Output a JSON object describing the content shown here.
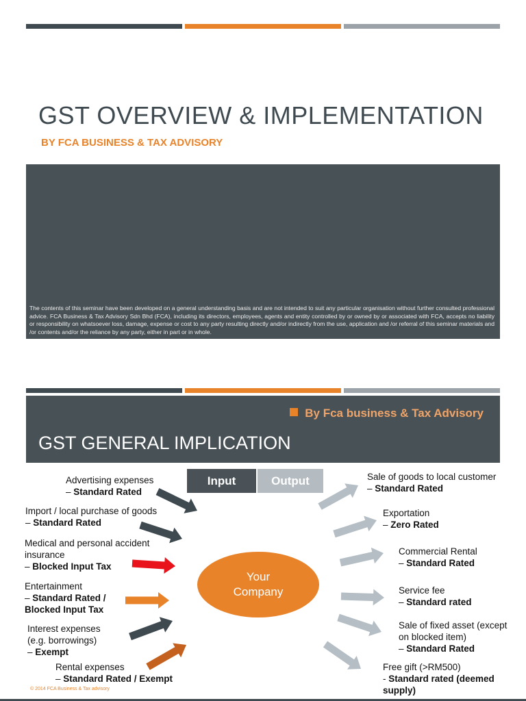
{
  "slide1": {
    "title": "GST OVERVIEW & IMPLEMENTATION",
    "subtitle": "BY FCA BUSINESS & TAX ADVISORY",
    "disclaimer": "The contents of this seminar have been developed on a general understanding basis and are not intended to suit any particular organisation without further consulted professional advice. FCA Business & Tax Advisory Sdn Bhd (FCA), including its directors, employees, agents and entity controlled by or owned by or associated with FCA, accepts no liability or responsibility on whatsoever loss, damage, expense or cost to any party resulting directly and/or indirectly from the use, application and /or referral of this seminar materials and /or contents and/or the reliance by any party, either in part or in whole."
  },
  "slide2": {
    "byline": "By Fca business & Tax Advisory",
    "title": "GST GENERAL IMPLICATION",
    "tabs": {
      "input": "Input",
      "output": "Output"
    },
    "center": {
      "line1": "Your",
      "line2": "Company"
    },
    "inputs": [
      {
        "line1": "Advertising expenses",
        "line2": "– ",
        "bold": "Standard Rated"
      },
      {
        "line1": "Import / local purchase of goods",
        "line2": "– ",
        "bold": "Standard Rated"
      },
      {
        "line1": "Medical and personal accident",
        "line1b": "insurance",
        "line2": "– ",
        "bold": "Blocked Input Tax"
      },
      {
        "line1": "Entertainment",
        "line2": "– ",
        "bold": "Standard Rated /",
        "bold2": "Blocked Input Tax"
      },
      {
        "line1": "Interest expenses",
        "line1b": "(e.g. borrowings)",
        "line2": "– ",
        "bold": "Exempt"
      },
      {
        "line1": "Rental expenses",
        "line2": "– ",
        "bold": "Standard Rated / Exempt"
      }
    ],
    "outputs": [
      {
        "line1": "Sale of goods to local customer",
        "line2": "– ",
        "bold": "Standard Rated"
      },
      {
        "line1": "Exportation",
        "line2": "– ",
        "bold": "Zero Rated"
      },
      {
        "line1": "Commercial Rental",
        "line2": "– ",
        "bold": "Standard Rated"
      },
      {
        "line1": "Service fee",
        "line2": "– ",
        "bold": "Standard rated"
      },
      {
        "line1": "Sale of fixed asset (except",
        "line1b": "on blocked item)",
        "line2": "– ",
        "bold": "Standard Rated"
      },
      {
        "line1": "Free gift (>RM500)",
        "line2": "-  ",
        "bold": "Standard rated (deemed",
        "bold2": "supply)"
      }
    ],
    "footer": "© 2014   FCA Business & Tax advisory"
  },
  "colors": {
    "dark": "#3f4a50",
    "orange": "#e8832a",
    "gray": "#9ba3a8",
    "red_arrow": "#e8131b",
    "light_arrow": "#b4bec4"
  }
}
